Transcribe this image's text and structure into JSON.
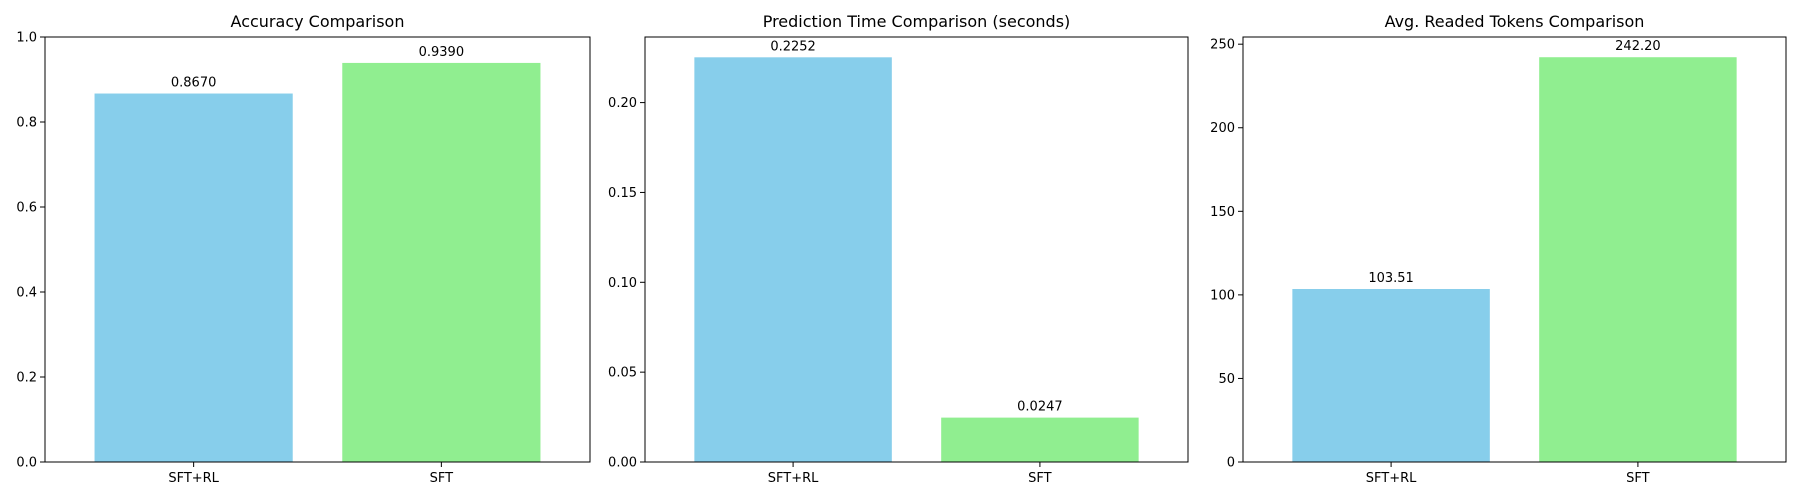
{
  "colors": {
    "series": [
      "#87CEEB",
      "#90EE90"
    ],
    "axis": "#000000",
    "background": "#ffffff"
  },
  "chart_data": [
    {
      "type": "bar",
      "title": "Accuracy Comparison",
      "categories": [
        "SFT+RL",
        "SFT"
      ],
      "values": [
        0.867,
        0.939
      ],
      "value_labels": [
        "0.8670",
        "0.9390"
      ],
      "ylim": [
        0,
        1.0
      ],
      "yticks": [
        0.0,
        0.2,
        0.4,
        0.6,
        0.8,
        1.0
      ],
      "ytick_labels": [
        "0.0",
        "0.2",
        "0.4",
        "0.6",
        "0.8",
        "1.0"
      ],
      "grid": false
    },
    {
      "type": "bar",
      "title": "Prediction Time Comparison (seconds)",
      "categories": [
        "SFT+RL",
        "SFT"
      ],
      "values": [
        0.2252,
        0.0247
      ],
      "value_labels": [
        "0.2252",
        "0.0247"
      ],
      "ylim": [
        0,
        0.2365
      ],
      "yticks": [
        0.0,
        0.05,
        0.1,
        0.15,
        0.2
      ],
      "ytick_labels": [
        "0.00",
        "0.05",
        "0.10",
        "0.15",
        "0.20"
      ],
      "grid": false
    },
    {
      "type": "bar",
      "title": "Avg. Readed Tokens Comparison",
      "categories": [
        "SFT+RL",
        "SFT"
      ],
      "values": [
        103.51,
        242.2
      ],
      "value_labels": [
        "103.51",
        "242.20"
      ],
      "ylim": [
        0,
        254.3
      ],
      "yticks": [
        0,
        50,
        100,
        150,
        200,
        250
      ],
      "ytick_labels": [
        "0",
        "50",
        "100",
        "150",
        "200",
        "250"
      ],
      "grid": false
    }
  ]
}
